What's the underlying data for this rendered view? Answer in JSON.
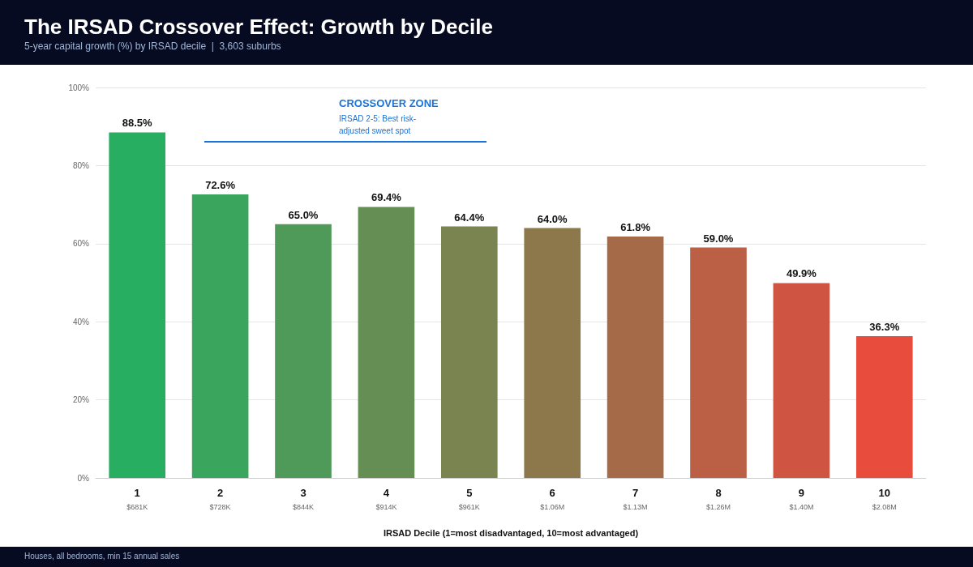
{
  "chart_data": {
    "type": "bar",
    "title": "The IRSAD Crossover Effect: Growth by Decile",
    "subtitle": "5-year capital growth (%) by IRSAD decile  |  3,603 suburbs",
    "xlabel": "IRSAD Decile (1=most disadvantaged, 10=most advantaged)",
    "categories": [
      "1\n$681K",
      "2\n$728K",
      "3\n$844K",
      "4\n$914K",
      "5\n$961K",
      "6\n$1.06M",
      "7\n$1.13M",
      "8\n$1.26M",
      "9\n$1.40M",
      "10\n$2.08M"
    ],
    "values": [
      88.5,
      72.6,
      65.0,
      69.4,
      64.4,
      64.0,
      61.8,
      59.0,
      49.9,
      36.3
    ],
    "value_labels": [
      "88.5%",
      "72.6%",
      "65.0%",
      "69.4%",
      "64.4%",
      "64.0%",
      "61.8%",
      "59.0%",
      "49.9%",
      "36.3%"
    ],
    "colors": [
      "#27ae60",
      "#3aa55c",
      "#4f9a58",
      "#648e54",
      "#7a8450",
      "#8d784c",
      "#a56b48",
      "#bb5f45",
      "#d05442",
      "#e74c3c"
    ],
    "ylim": [
      0,
      100
    ],
    "yticks": [
      {
        "value": 0,
        "label": "0%"
      },
      {
        "value": 20,
        "label": "20%"
      },
      {
        "value": 40,
        "label": "40%"
      },
      {
        "value": 60,
        "label": "60%"
      },
      {
        "value": 80,
        "label": "80%"
      },
      {
        "value": 100,
        "label": "100%"
      }
    ],
    "grid": "y",
    "annotations": [
      "CROSSOVER ZONE",
      "IRSAD 2-5: Best risk-adjusted sweet spot",
      "Houses, all bedrooms, min 15 annual sales"
    ]
  }
}
